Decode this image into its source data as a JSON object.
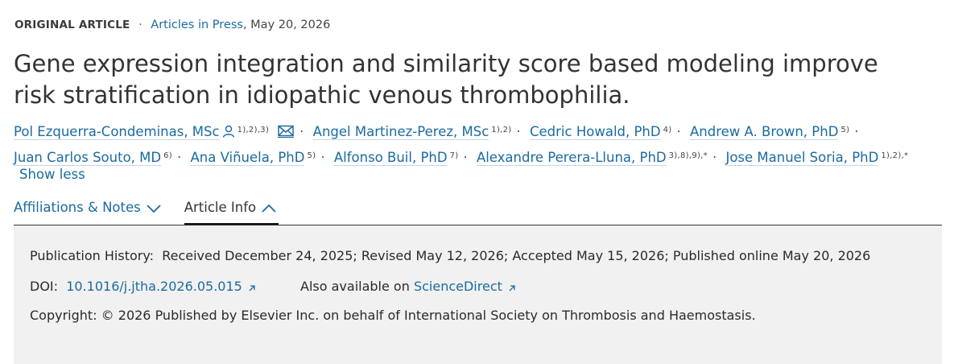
{
  "article": {
    "type": "ORIGINAL ARTICLE",
    "separator": "·",
    "issue_link": "Articles in Press",
    "date": "May 20, 2026",
    "title": "Gene expression integration and similarity score based modeling improve risk stratification in idiopathic venous thrombophilia."
  },
  "authors": [
    {
      "name": "Pol Ezquerra-Condeminas, MSc",
      "sup": "1),2),3)"
    },
    {
      "name": "Angel Martinez-Perez, MSc",
      "sup": "1),2)"
    },
    {
      "name": "Cedric Howald, PhD",
      "sup": "4)"
    },
    {
      "name": "Andrew A. Brown, PhD",
      "sup": "5)"
    },
    {
      "name": "Juan Carlos Souto, MD",
      "sup": "6)"
    },
    {
      "name": "Ana Viñuela, PhD",
      "sup": "5)"
    },
    {
      "name": "Alfonso Buil, PhD",
      "sup": "7)"
    },
    {
      "name": "Alexandre Perera-Lluna, PhD",
      "sup": "3),8),9),*"
    },
    {
      "name": "Jose Manuel Soria, PhD",
      "sup": "1),2),*"
    }
  ],
  "show_less": "Show less",
  "tabs": {
    "affiliations": "Affiliations & Notes",
    "article_info": "Article Info"
  },
  "info": {
    "history_label": "Publication History:",
    "history_value": "Received December 24, 2025; Revised May 12, 2026; Accepted May 15, 2026; Published online May 20, 2026",
    "doi_label": "DOI:",
    "doi_value": "10.1016/j.jtha.2026.05.015",
    "also_label": "Also available on",
    "also_link": "ScienceDirect",
    "copyright_label": "Copyright:",
    "copyright_value": "© 2026 Published by Elsevier Inc. on behalf of International Society on Thrombosis and Haemostasis."
  },
  "colors": {
    "link": "#1a6ba0",
    "text": "#2e2e2e",
    "panel_bg": "#f1f1f1"
  },
  "icons": [
    "person-icon",
    "email-icon",
    "chevron-down-icon",
    "chevron-up-icon",
    "external-link-icon"
  ]
}
